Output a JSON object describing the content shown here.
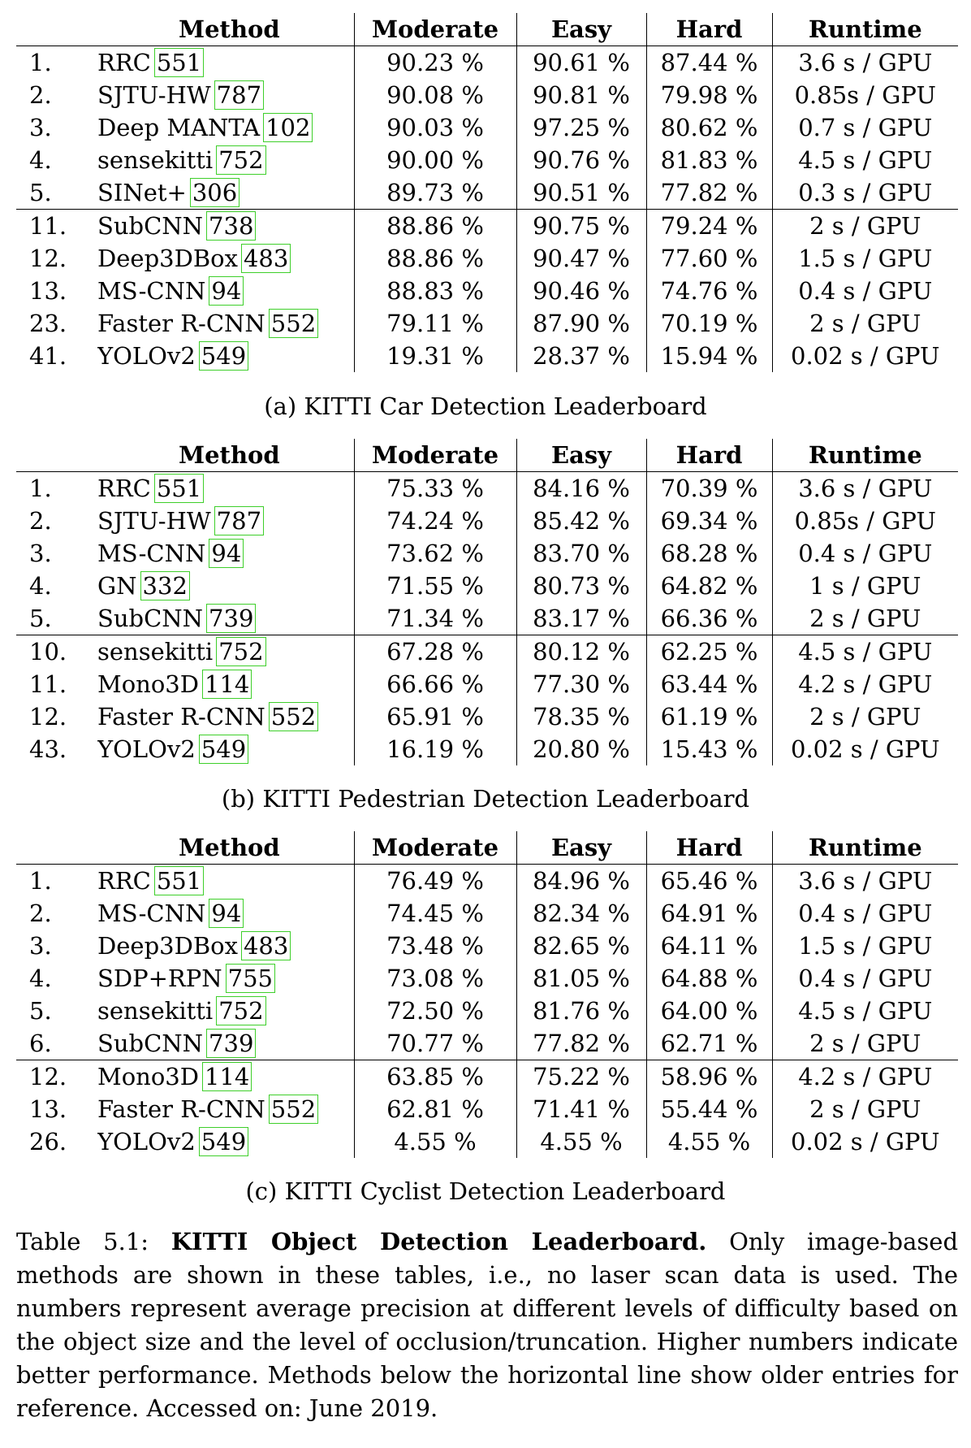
{
  "headers": {
    "method": "Method",
    "moderate": "Moderate",
    "easy": "Easy",
    "hard": "Hard",
    "runtime": "Runtime"
  },
  "colors": {
    "citation_box": "#3ecf2a",
    "text": "#000000"
  },
  "tables": {
    "car": {
      "caption": "(a) KITTI Car Detection Leaderboard",
      "rows": [
        {
          "rank": "1.",
          "method": "RRC",
          "cite": "551",
          "moderate": "90.23 %",
          "easy": "90.61 %",
          "hard": "87.44 %",
          "runtime": "3.6 s / GPU"
        },
        {
          "rank": "2.",
          "method": "SJTU-HW",
          "cite": "787",
          "moderate": "90.08 %",
          "easy": "90.81 %",
          "hard": "79.98 %",
          "runtime": "0.85s / GPU"
        },
        {
          "rank": "3.",
          "method": "Deep MANTA",
          "cite": "102",
          "moderate": "90.03 %",
          "easy": "97.25 %",
          "hard": "80.62 %",
          "runtime": "0.7 s / GPU"
        },
        {
          "rank": "4.",
          "method": "sensekitti",
          "cite": "752",
          "moderate": "90.00 %",
          "easy": "90.76 %",
          "hard": "81.83 %",
          "runtime": "4.5 s / GPU"
        },
        {
          "rank": "5.",
          "method": "SINet+",
          "cite": "306",
          "moderate": "89.73 %",
          "easy": "90.51 %",
          "hard": "77.82 %",
          "runtime": "0.3 s / GPU"
        },
        {
          "rank": "11.",
          "method": "SubCNN",
          "cite": "738",
          "moderate": "88.86 %",
          "easy": "90.75 %",
          "hard": "79.24 %",
          "runtime": "2 s / GPU"
        },
        {
          "rank": "12.",
          "method": "Deep3DBox",
          "cite": "483",
          "moderate": "88.86 %",
          "easy": "90.47 %",
          "hard": "77.60 %",
          "runtime": "1.5 s / GPU"
        },
        {
          "rank": "13.",
          "method": "MS-CNN",
          "cite": "94",
          "moderate": "88.83 %",
          "easy": "90.46 %",
          "hard": "74.76 %",
          "runtime": "0.4 s / GPU"
        },
        {
          "rank": "23.",
          "method": "Faster R-CNN",
          "cite": "552",
          "moderate": "79.11 %",
          "easy": "87.90 %",
          "hard": "70.19 %",
          "runtime": "2 s / GPU"
        },
        {
          "rank": "41.",
          "method": "YOLOv2",
          "cite": "549",
          "moderate": "19.31 %",
          "easy": "28.37 %",
          "hard": "15.94 %",
          "runtime": "0.02 s / GPU"
        }
      ]
    },
    "pedestrian": {
      "caption": "(b) KITTI Pedestrian Detection Leaderboard",
      "rows": [
        {
          "rank": "1.",
          "method": "RRC",
          "cite": "551",
          "moderate": "75.33 %",
          "easy": "84.16 %",
          "hard": "70.39 %",
          "runtime": "3.6 s / GPU"
        },
        {
          "rank": "2.",
          "method": "SJTU-HW",
          "cite": "787",
          "moderate": "74.24 %",
          "easy": "85.42 %",
          "hard": "69.34 %",
          "runtime": "0.85s / GPU"
        },
        {
          "rank": "3.",
          "method": "MS-CNN",
          "cite": "94",
          "moderate": "73.62 %",
          "easy": "83.70 %",
          "hard": "68.28 %",
          "runtime": "0.4 s / GPU"
        },
        {
          "rank": "4.",
          "method": "GN",
          "cite": "332",
          "moderate": "71.55 %",
          "easy": "80.73 %",
          "hard": "64.82 %",
          "runtime": "1 s / GPU"
        },
        {
          "rank": "5.",
          "method": "SubCNN",
          "cite": "739",
          "moderate": "71.34 %",
          "easy": "83.17 %",
          "hard": "66.36 %",
          "runtime": "2 s / GPU"
        },
        {
          "rank": "10.",
          "method": "sensekitti",
          "cite": "752",
          "moderate": "67.28 %",
          "easy": "80.12 %",
          "hard": "62.25 %",
          "runtime": "4.5 s / GPU"
        },
        {
          "rank": "11.",
          "method": "Mono3D",
          "cite": "114",
          "moderate": "66.66 %",
          "easy": "77.30 %",
          "hard": "63.44 %",
          "runtime": "4.2 s / GPU"
        },
        {
          "rank": "12.",
          "method": "Faster R-CNN",
          "cite": "552",
          "moderate": "65.91 %",
          "easy": "78.35 %",
          "hard": "61.19 %",
          "runtime": "2 s / GPU"
        },
        {
          "rank": "43.",
          "method": "YOLOv2",
          "cite": "549",
          "moderate": "16.19 %",
          "easy": "20.80 %",
          "hard": "15.43 %",
          "runtime": "0.02 s / GPU"
        }
      ]
    },
    "cyclist": {
      "caption": "(c) KITTI Cyclist Detection Leaderboard",
      "rows": [
        {
          "rank": "1.",
          "method": "RRC",
          "cite": "551",
          "moderate": "76.49 %",
          "easy": "84.96 %",
          "hard": "65.46 %",
          "runtime": "3.6 s / GPU"
        },
        {
          "rank": "2.",
          "method": "MS-CNN",
          "cite": "94",
          "moderate": "74.45 %",
          "easy": "82.34 %",
          "hard": "64.91 %",
          "runtime": "0.4 s / GPU"
        },
        {
          "rank": "3.",
          "method": "Deep3DBox",
          "cite": "483",
          "moderate": "73.48 %",
          "easy": "82.65 %",
          "hard": "64.11 %",
          "runtime": "1.5 s / GPU"
        },
        {
          "rank": "4.",
          "method": "SDP+RPN",
          "cite": "755",
          "moderate": "73.08 %",
          "easy": "81.05 %",
          "hard": "64.88 %",
          "runtime": "0.4 s / GPU"
        },
        {
          "rank": "5.",
          "method": "sensekitti",
          "cite": "752",
          "moderate": "72.50 %",
          "easy": "81.76 %",
          "hard": "64.00 %",
          "runtime": "4.5 s / GPU"
        },
        {
          "rank": "6.",
          "method": "SubCNN",
          "cite": "739",
          "moderate": "70.77 %",
          "easy": "77.82 %",
          "hard": "62.71 %",
          "runtime": "2 s / GPU"
        },
        {
          "rank": "12.",
          "method": "Mono3D",
          "cite": "114",
          "moderate": "63.85 %",
          "easy": "75.22 %",
          "hard": "58.96 %",
          "runtime": "4.2 s / GPU"
        },
        {
          "rank": "13.",
          "method": "Faster R-CNN",
          "cite": "552",
          "moderate": "62.81 %",
          "easy": "71.41 %",
          "hard": "55.44 %",
          "runtime": "2 s / GPU"
        },
        {
          "rank": "26.",
          "method": "YOLOv2",
          "cite": "549",
          "moderate": "4.55 %",
          "easy": "4.55 %",
          "hard": "4.55 %",
          "runtime": "0.02 s / GPU"
        }
      ]
    }
  },
  "main_caption": {
    "label": "Table 5.1:",
    "title": "KITTI Object Detection Leaderboard.",
    "text": "Only image-based methods are shown in these tables, i.e., no laser scan data is used. The numbers represent average precision at different levels of difficulty based on the object size and the level of occlusion/truncation. Higher numbers indicate better performance. Methods below the horizontal line show older entries for reference. Accessed on: June 2019."
  }
}
